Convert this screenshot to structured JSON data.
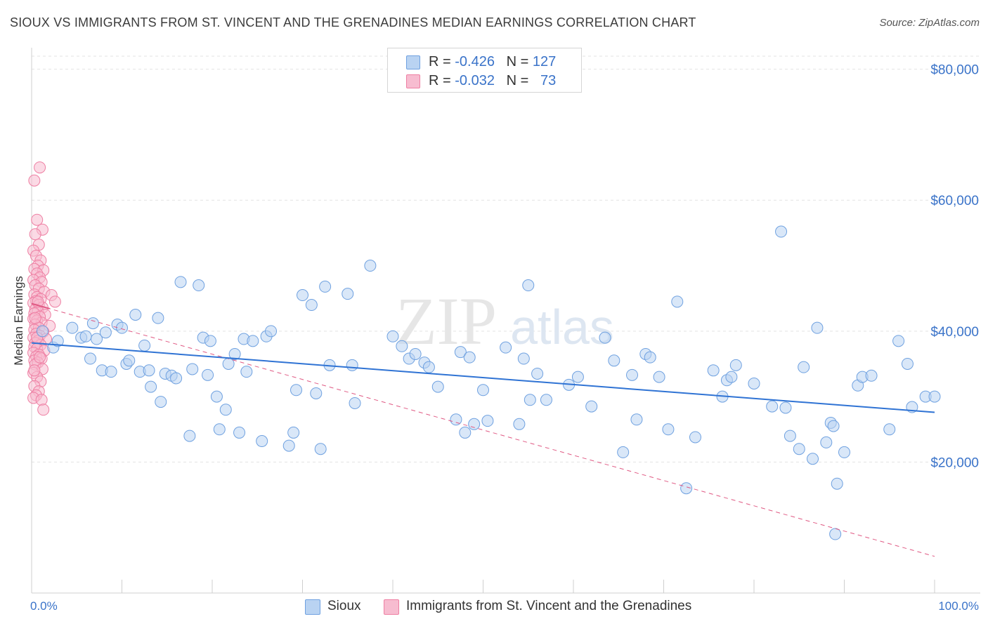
{
  "header": {
    "title": "SIOUX VS IMMIGRANTS FROM ST. VINCENT AND THE GRENADINES MEDIAN EARNINGS CORRELATION CHART",
    "source": "Source: ZipAtlas.com"
  },
  "watermark": {
    "zip": "ZIP",
    "atlas": "atlas"
  },
  "legend": {
    "rows": [
      {
        "r_label": "R = ",
        "r_value": "-0.426",
        "n_label": "N = ",
        "n_value": "127"
      },
      {
        "r_label": "R = ",
        "r_value": "-0.032",
        "n_label": "N = ",
        "n_value": "73"
      }
    ]
  },
  "colors": {
    "sioux_fill": "#b9d3f2",
    "sioux_stroke": "#6fa1e0",
    "sioux_line": "#2f73d4",
    "svg_fill": "#f7bcd0",
    "svg_stroke": "#ee7fa3",
    "svg_line": "#e05a84",
    "grid": "#e3e3e3",
    "axis_text": "#3a73c9"
  },
  "chart_data": {
    "type": "scatter",
    "title": "SIOUX VS IMMIGRANTS FROM ST. VINCENT AND THE GRENADINES MEDIAN EARNINGS CORRELATION CHART",
    "xlabel": "",
    "ylabel": "Median Earnings",
    "xlim": [
      0,
      100
    ],
    "ylim": [
      0,
      82000
    ],
    "x_tick_labels": [
      "0.0%",
      "100.0%"
    ],
    "y_tick_values": [
      20000,
      40000,
      60000,
      80000
    ],
    "y_tick_labels": [
      "$20,000",
      "$40,000",
      "$60,000",
      "$80,000"
    ],
    "grid": true,
    "legend_position": "top-center",
    "series": [
      {
        "name": "Sioux",
        "r": -0.426,
        "n": 127,
        "trend": {
          "x": [
            0,
            100
          ],
          "y": [
            38200,
            27600
          ]
        },
        "points": [
          [
            1.2,
            40000
          ],
          [
            2.4,
            37500
          ],
          [
            2.9,
            38500
          ],
          [
            4.5,
            40500
          ],
          [
            5.5,
            39000
          ],
          [
            6,
            39200
          ],
          [
            6.5,
            35800
          ],
          [
            6.8,
            41200
          ],
          [
            7.2,
            38800
          ],
          [
            7.8,
            34000
          ],
          [
            8.2,
            39800
          ],
          [
            8.8,
            33800
          ],
          [
            9.5,
            41000
          ],
          [
            10,
            40500
          ],
          [
            10.5,
            35000
          ],
          [
            10.8,
            35500
          ],
          [
            11.5,
            42500
          ],
          [
            12,
            33800
          ],
          [
            12.5,
            37800
          ],
          [
            13,
            34000
          ],
          [
            13.2,
            31500
          ],
          [
            14,
            42000
          ],
          [
            14.3,
            29200
          ],
          [
            14.8,
            33500
          ],
          [
            15.5,
            33200
          ],
          [
            16,
            32800
          ],
          [
            16.5,
            47500
          ],
          [
            17.5,
            24000
          ],
          [
            17.8,
            34200
          ],
          [
            18.5,
            47000
          ],
          [
            19,
            39000
          ],
          [
            19.5,
            33300
          ],
          [
            19.8,
            38500
          ],
          [
            20.5,
            30000
          ],
          [
            20.8,
            25000
          ],
          [
            21.5,
            28000
          ],
          [
            21.8,
            35000
          ],
          [
            22.5,
            36500
          ],
          [
            23,
            24500
          ],
          [
            23.5,
            38800
          ],
          [
            23.8,
            33800
          ],
          [
            24.5,
            38500
          ],
          [
            25.5,
            23200
          ],
          [
            26,
            39200
          ],
          [
            26.5,
            40000
          ],
          [
            28.5,
            22500
          ],
          [
            29,
            24500
          ],
          [
            29.3,
            31000
          ],
          [
            30,
            45500
          ],
          [
            31,
            44000
          ],
          [
            31.5,
            30500
          ],
          [
            32,
            22000
          ],
          [
            32.5,
            46800
          ],
          [
            33,
            34800
          ],
          [
            35,
            45700
          ],
          [
            35.5,
            34800
          ],
          [
            35.8,
            29000
          ],
          [
            37.5,
            50000
          ],
          [
            40,
            39200
          ],
          [
            41,
            37700
          ],
          [
            41.8,
            35800
          ],
          [
            42.5,
            36500
          ],
          [
            43.5,
            35200
          ],
          [
            44,
            34500
          ],
          [
            45,
            31500
          ],
          [
            47,
            26500
          ],
          [
            47.5,
            36800
          ],
          [
            48,
            24500
          ],
          [
            48.5,
            36000
          ],
          [
            49,
            25800
          ],
          [
            50,
            31000
          ],
          [
            50.5,
            26300
          ],
          [
            52.5,
            37500
          ],
          [
            54,
            25800
          ],
          [
            54.5,
            35800
          ],
          [
            55,
            47000
          ],
          [
            55.2,
            29500
          ],
          [
            56,
            33500
          ],
          [
            57,
            29500
          ],
          [
            59.5,
            31800
          ],
          [
            60.5,
            33000
          ],
          [
            62,
            28500
          ],
          [
            63.5,
            39000
          ],
          [
            64.5,
            35500
          ],
          [
            65.5,
            21500
          ],
          [
            66.5,
            33300
          ],
          [
            67,
            26500
          ],
          [
            68,
            36500
          ],
          [
            68.5,
            36000
          ],
          [
            69.5,
            33000
          ],
          [
            70.5,
            25000
          ],
          [
            71.5,
            44500
          ],
          [
            72.5,
            16000
          ],
          [
            73.5,
            23800
          ],
          [
            75.5,
            34000
          ],
          [
            76.5,
            30000
          ],
          [
            77,
            32500
          ],
          [
            77.5,
            33000
          ],
          [
            78,
            34800
          ],
          [
            80,
            32000
          ],
          [
            82,
            28500
          ],
          [
            83,
            55200
          ],
          [
            83.5,
            28300
          ],
          [
            84,
            24000
          ],
          [
            85,
            22000
          ],
          [
            85.5,
            34500
          ],
          [
            86.5,
            20500
          ],
          [
            87,
            40500
          ],
          [
            88,
            23000
          ],
          [
            88.5,
            26000
          ],
          [
            88.8,
            25500
          ],
          [
            89,
            9000
          ],
          [
            89.2,
            16700
          ],
          [
            90,
            21500
          ],
          [
            91.5,
            31700
          ],
          [
            92,
            33000
          ],
          [
            93,
            33200
          ],
          [
            95,
            25000
          ],
          [
            96,
            38500
          ],
          [
            97,
            35000
          ],
          [
            97.5,
            28400
          ],
          [
            99,
            30000
          ],
          [
            100,
            30000
          ]
        ]
      },
      {
        "name": "Immigrants from St. Vincent and the Grenadines",
        "r": -0.032,
        "n": 73,
        "trend": {
          "x": [
            0,
            100
          ],
          "y": [
            44200,
            5600
          ]
        },
        "points": [
          [
            0.3,
            63000
          ],
          [
            0.9,
            65000
          ],
          [
            0.6,
            57000
          ],
          [
            1.2,
            55500
          ],
          [
            0.4,
            54800
          ],
          [
            0.8,
            53200
          ],
          [
            0.2,
            52300
          ],
          [
            0.5,
            51500
          ],
          [
            1,
            50800
          ],
          [
            0.7,
            50000
          ],
          [
            0.3,
            49500
          ],
          [
            1.3,
            49300
          ],
          [
            0.6,
            48800
          ],
          [
            0.9,
            48200
          ],
          [
            0.2,
            47800
          ],
          [
            1.1,
            47500
          ],
          [
            0.4,
            47000
          ],
          [
            0.8,
            46500
          ],
          [
            1.4,
            46000
          ],
          [
            0.3,
            45600
          ],
          [
            0.6,
            45200
          ],
          [
            2.2,
            45500
          ],
          [
            1.0,
            44900
          ],
          [
            0.5,
            44600
          ],
          [
            0.2,
            44300
          ],
          [
            0.8,
            44000
          ],
          [
            2.6,
            44500
          ],
          [
            1.2,
            43600
          ],
          [
            0.4,
            43300
          ],
          [
            0.7,
            43000
          ],
          [
            0.3,
            42700
          ],
          [
            1.5,
            42500
          ],
          [
            0.9,
            42200
          ],
          [
            0.2,
            41900
          ],
          [
            0.6,
            41600
          ],
          [
            1.1,
            41300
          ],
          [
            0.4,
            41000
          ],
          [
            2.0,
            40800
          ],
          [
            0.8,
            40500
          ],
          [
            0.3,
            40200
          ],
          [
            1.3,
            39900
          ],
          [
            0.5,
            39600
          ],
          [
            0.9,
            39300
          ],
          [
            0.2,
            39000
          ],
          [
            1.6,
            38800
          ],
          [
            0.7,
            38500
          ],
          [
            0.4,
            38200
          ],
          [
            1.0,
            37900
          ],
          [
            0.3,
            37600
          ],
          [
            0.6,
            37300
          ],
          [
            1.4,
            37000
          ],
          [
            0.2,
            36700
          ],
          [
            0.8,
            36400
          ],
          [
            0.5,
            36100
          ],
          [
            1.1,
            35800
          ],
          [
            0.3,
            35500
          ],
          [
            0.7,
            35200
          ],
          [
            0.4,
            34900
          ],
          [
            1.2,
            34200
          ],
          [
            0.2,
            33600
          ],
          [
            0.6,
            33000
          ],
          [
            1.0,
            32300
          ],
          [
            0.3,
            31600
          ],
          [
            0.8,
            30800
          ],
          [
            0.5,
            30200
          ],
          [
            0.2,
            29800
          ],
          [
            1.1,
            29500
          ],
          [
            1.3,
            28000
          ],
          [
            0.4,
            42000
          ],
          [
            0.6,
            39000
          ],
          [
            0.9,
            36000
          ],
          [
            0.3,
            34000
          ],
          [
            0.7,
            44500
          ]
        ]
      }
    ]
  },
  "bottom_legend": {
    "items": [
      {
        "label": "Sioux"
      },
      {
        "label": "Immigrants from St. Vincent and the Grenadines"
      }
    ]
  }
}
